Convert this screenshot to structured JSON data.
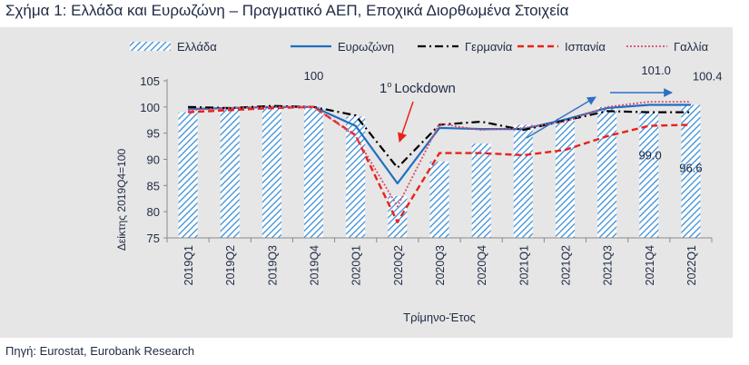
{
  "title": "Σχήμα 1: Ελλάδα και Ευρωζώνη – Πραγματικό ΑΕΠ, Εποχικά Διορθωμένα Στοιχεία",
  "source": "Πηγή: Eurostat, Eurobank Research",
  "chart_data": {
    "type": "bar",
    "xlabel": "Τρίμηνο-Έτος",
    "ylabel": "Δείκτης 2019Q4=100",
    "ylim": [
      75,
      105
    ],
    "yticks": [
      "75",
      "80",
      "85",
      "90",
      "95",
      "100",
      "105"
    ],
    "grid": false,
    "legend_position": "top",
    "categories": [
      "2019Q1",
      "2019Q2",
      "2019Q3",
      "2019Q4",
      "2020Q1",
      "2020Q2",
      "2020Q3",
      "2020Q4",
      "2021Q1",
      "2021Q2",
      "2021Q3",
      "2021Q4",
      "2022Q1"
    ],
    "series": [
      {
        "name": "Ελλάδα",
        "kind": "bar",
        "color": "#3b8fd8",
        "values": [
          99.0,
          99.8,
          99.9,
          100.0,
          98.2,
          83.0,
          89.6,
          93.0,
          96.6,
          97.8,
          100.0,
          99.0,
          100.4
        ]
      },
      {
        "name": "Ευρωζώνη",
        "kind": "line",
        "color": "#1f6fc0",
        "values": [
          99.6,
          99.8,
          100.0,
          100.0,
          96.4,
          85.4,
          96.0,
          95.8,
          95.8,
          97.6,
          99.8,
          100.4,
          100.4
        ]
      },
      {
        "name": "Γερμανία",
        "kind": "line",
        "color": "#000000",
        "values": [
          100.0,
          99.8,
          100.2,
          100.0,
          98.4,
          88.4,
          96.6,
          97.2,
          95.6,
          97.4,
          99.2,
          99.0,
          99.0
        ]
      },
      {
        "name": "Ισπανία",
        "kind": "line",
        "color": "#e8221c",
        "values": [
          99.0,
          99.4,
          99.8,
          100.0,
          94.6,
          78.0,
          91.2,
          91.2,
          90.8,
          91.8,
          94.4,
          96.4,
          96.6
        ]
      },
      {
        "name": "Γαλλία",
        "kind": "line",
        "color": "#e04a6a",
        "values": [
          99.4,
          99.8,
          100.0,
          100.0,
          94.4,
          81.0,
          96.8,
          95.6,
          96.0,
          97.2,
          100.0,
          101.0,
          101.0
        ]
      }
    ],
    "annotations": [
      {
        "text": "100",
        "category": "2019Q4",
        "y": 100
      },
      {
        "text": "101.0",
        "category": "2022Q1",
        "y": 101.0
      },
      {
        "text": "100.4",
        "category": "2022Q1",
        "y": 100.4
      },
      {
        "text": "99.0",
        "category": "2021Q4",
        "y": 99.0
      },
      {
        "text": "96.6",
        "category": "2022Q1",
        "y": 96.6
      }
    ],
    "lockdown_label": {
      "number": "1",
      "superscript": "ο",
      "text": "Lockdown"
    }
  }
}
